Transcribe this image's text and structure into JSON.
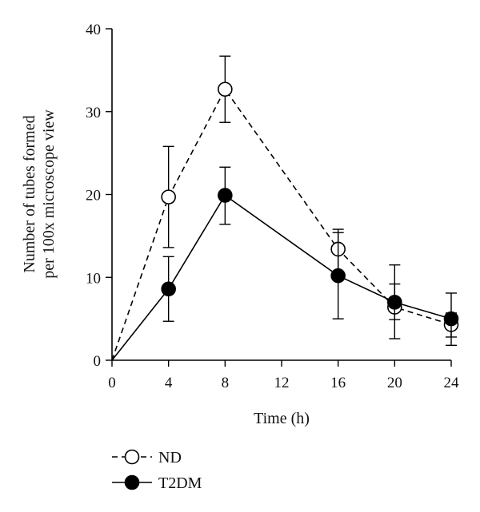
{
  "chart_data": {
    "type": "line",
    "xlabel": "Time (h)",
    "ylabel_line1": "Number of tubes formed",
    "ylabel_line2": "per 100x microscope view",
    "xlim": [
      0,
      24
    ],
    "ylim": [
      0,
      40
    ],
    "xticks": [
      "0",
      "4",
      "8",
      "12",
      "16",
      "20",
      "24"
    ],
    "yticks": [
      "0",
      "10",
      "20",
      "30",
      "40"
    ],
    "grid": false,
    "legend_position": "bottom-left",
    "series": [
      {
        "name": "ND",
        "marker": "open-circle",
        "line": "dashed",
        "x": [
          0,
          4,
          8,
          16,
          20,
          24
        ],
        "y": [
          0,
          19.7,
          32.7,
          13.4,
          6.4,
          4.3
        ],
        "err_low": [
          0,
          13.6,
          28.7,
          10.2,
          4.9,
          2.8
        ],
        "err_high": [
          0,
          25.8,
          36.7,
          15.8,
          11.5,
          5.7
        ]
      },
      {
        "name": "T2DM",
        "marker": "filled-circle",
        "line": "solid",
        "x": [
          0,
          4,
          8,
          16,
          20,
          24
        ],
        "y": [
          0,
          8.6,
          19.9,
          10.2,
          7.0,
          5.0
        ],
        "err_low": [
          0,
          4.7,
          16.4,
          5.0,
          2.6,
          1.8
        ],
        "err_high": [
          0,
          12.5,
          23.3,
          15.4,
          9.2,
          8.1
        ]
      }
    ]
  }
}
